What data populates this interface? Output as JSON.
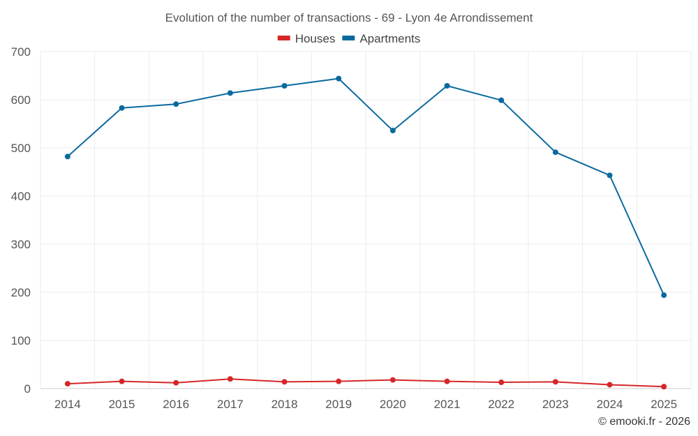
{
  "chart_data": {
    "type": "line",
    "title": "Evolution of the number of transactions - 69 - Lyon 4e Arrondissement",
    "categories": [
      "2014",
      "2015",
      "2016",
      "2017",
      "2018",
      "2019",
      "2020",
      "2021",
      "2022",
      "2023",
      "2024",
      "2025"
    ],
    "series": [
      {
        "name": "Houses",
        "color": "#d62728",
        "values": [
          10,
          15,
          12,
          20,
          14,
          15,
          18,
          15,
          13,
          14,
          8,
          4
        ]
      },
      {
        "name": "Apartments",
        "color": "#0a6a9e",
        "values": [
          482,
          583,
          591,
          614,
          629,
          644,
          536,
          629,
          599,
          491,
          443,
          194
        ]
      }
    ],
    "ylim": [
      0,
      700
    ],
    "yticks": [
      0,
      100,
      200,
      300,
      400,
      500,
      600,
      700
    ],
    "xlabel": "",
    "ylabel": "",
    "grid": true,
    "legend": "top-center"
  },
  "credit": "© emooki.fr - 2026"
}
